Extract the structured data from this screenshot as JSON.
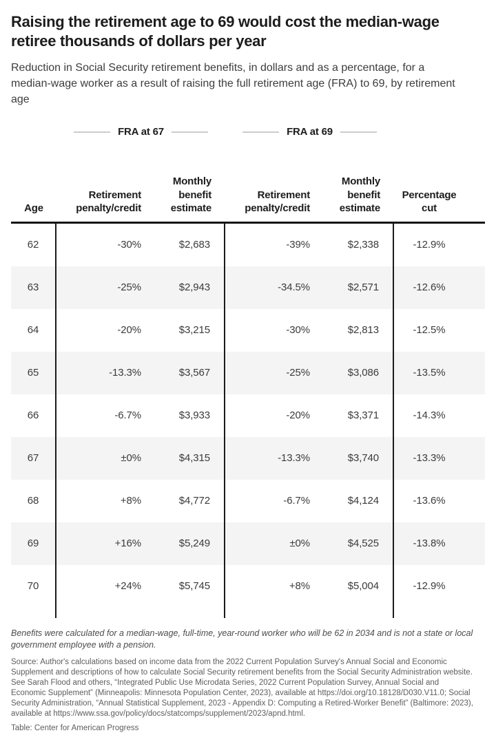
{
  "header": {
    "title": "Raising the retirement age to 69 would cost the median-wage retiree thousands of dollars per year",
    "subtitle": "Reduction in Social Security retirement benefits, in dollars and as a percentage, for a median-wage worker as a result of raising the full retirement age (FRA) to 69, by retirement age"
  },
  "colors": {
    "title_text": "#1c1c1c",
    "body_text": "#3b3b3b",
    "row_stripe": "#f4f4f4",
    "divider": "#1a1a1a",
    "legend_rule": "#cccccc",
    "note_text": "#5d5d5d"
  },
  "chart_data": {
    "type": "table",
    "title": "Raising the retirement age to 69 would cost the median-wage retiree thousands of dollars per year",
    "subtitle": "Reduction in Social Security retirement benefits, in dollars and as a percentage, for a median-wage worker as a result of raising the full retirement age (FRA) to 69, by retirement age",
    "legend": [
      "FRA at 67",
      "FRA at 69"
    ],
    "columns": [
      "Age",
      "Retirement penalty/credit",
      "Monthly benefit estimate",
      "Retirement penalty/credit",
      "Monthly benefit estimate",
      "Percentage cut"
    ],
    "rows": [
      {
        "age": "62",
        "fra67_penalty": "-30%",
        "fra67_benefit": "$2,683",
        "fra69_penalty": "-39%",
        "fra69_benefit": "$2,338",
        "percentage_cut": "-12.9%"
      },
      {
        "age": "63",
        "fra67_penalty": "-25%",
        "fra67_benefit": "$2,943",
        "fra69_penalty": "-34.5%",
        "fra69_benefit": "$2,571",
        "percentage_cut": "-12.6%"
      },
      {
        "age": "64",
        "fra67_penalty": "-20%",
        "fra67_benefit": "$3,215",
        "fra69_penalty": "-30%",
        "fra69_benefit": "$2,813",
        "percentage_cut": "-12.5%"
      },
      {
        "age": "65",
        "fra67_penalty": "-13.3%",
        "fra67_benefit": "$3,567",
        "fra69_penalty": "-25%",
        "fra69_benefit": "$3,086",
        "percentage_cut": "-13.5%"
      },
      {
        "age": "66",
        "fra67_penalty": "-6.7%",
        "fra67_benefit": "$3,933",
        "fra69_penalty": "-20%",
        "fra69_benefit": "$3,371",
        "percentage_cut": "-14.3%"
      },
      {
        "age": "67",
        "fra67_penalty": "±0%",
        "fra67_benefit": "$4,315",
        "fra69_penalty": "-13.3%",
        "fra69_benefit": "$3,740",
        "percentage_cut": "-13.3%"
      },
      {
        "age": "68",
        "fra67_penalty": "+8%",
        "fra67_benefit": "$4,772",
        "fra69_penalty": "-6.7%",
        "fra69_benefit": "$4,124",
        "percentage_cut": "-13.6%"
      },
      {
        "age": "69",
        "fra67_penalty": "+16%",
        "fra67_benefit": "$5,249",
        "fra69_penalty": "±0%",
        "fra69_benefit": "$4,525",
        "percentage_cut": "-13.8%"
      },
      {
        "age": "70",
        "fra67_penalty": "+24%",
        "fra67_benefit": "$5,745",
        "fra69_penalty": "+8%",
        "fra69_benefit": "$5,004",
        "percentage_cut": "-12.9%"
      }
    ]
  },
  "notes": {
    "footnote": "Benefits were calculated for a median-wage, full-time, year-round worker who will be 62 in 2034 and is not a state or local government employee with a pension.",
    "source": "Source: Author's calculations based on income data from the 2022 Current Population Survey's Annual Social and Economic Supplement and descriptions of how to calculate Social Security retirement benefits from the Social Security Administration website. See Sarah Flood and others, “Integrated Public Use Microdata Series, 2022 Current Population Survey, Annual Social and Economic Supplement” (Minneapolis: Minnesota Population Center, 2023), available at https://doi.org/10.18128/D030.V11.0; Social Security Administration, “Annual Statistical Supplement, 2023 - Appendix D: Computing a Retired-Worker Benefit” (Baltimore: 2023), available at https://www.ssa.gov/policy/docs/statcomps/supplement/2023/apnd.html.",
    "credit": "Table: Center for American Progress"
  }
}
